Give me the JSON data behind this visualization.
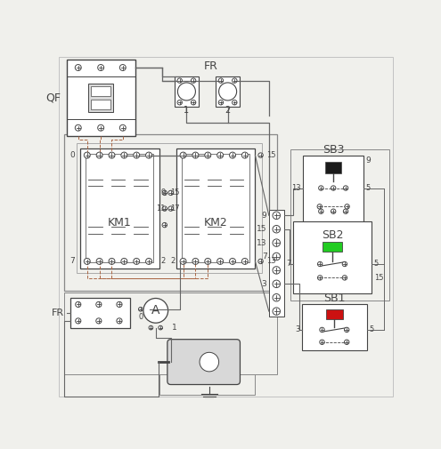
{
  "bg_color": "#f0f0ec",
  "line_color": "#444444",
  "wire_color": "#666666",
  "dashed_color": "#aa6644",
  "QF_label": "QF",
  "FR_label_top": "FR",
  "FR_label_bottom": "FR",
  "KM1_label": "KM1",
  "KM2_label": "KM2",
  "SB1_label": "SB1",
  "SB2_label": "SB2",
  "SB3_label": "SB3",
  "A_label": "A"
}
